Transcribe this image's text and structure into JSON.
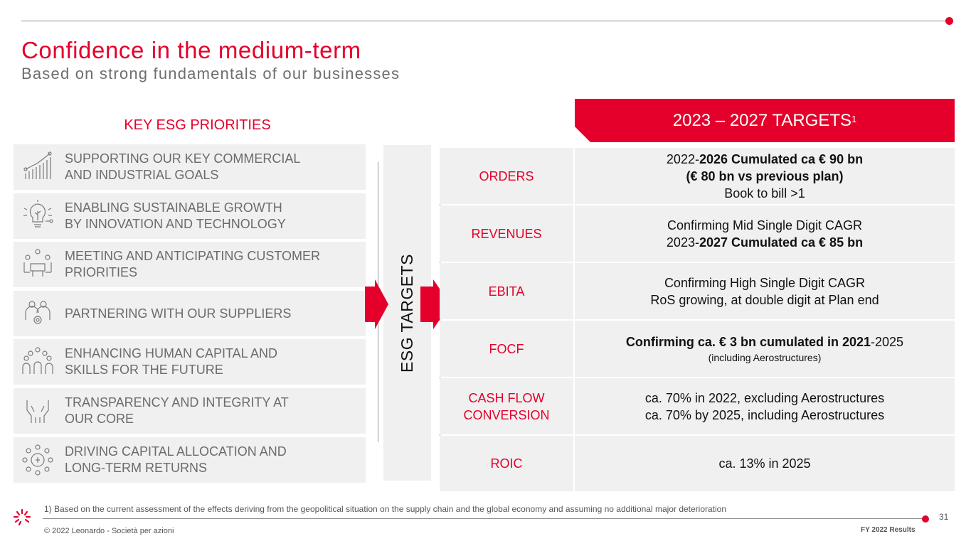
{
  "header": {
    "title": "Confidence in the medium-term",
    "subtitle": "Based on strong fundamentals of our businesses"
  },
  "esg": {
    "heading": "KEY ESG PRIORITIES",
    "vertical_label": "ESG TARGETS",
    "priorities": [
      {
        "line1": "SUPPORTING OUR KEY COMMERCIAL",
        "line2": "AND INDUSTRIAL GOALS",
        "icon": "growth-chart-icon"
      },
      {
        "line1": "ENABLING SUSTAINABLE GROWTH",
        "line2": "BY INNOVATION AND TECHNOLOGY",
        "icon": "lightbulb-icon"
      },
      {
        "line1": "MEETING AND ANTICIPATING CUSTOMER",
        "line2": "PRIORITIES",
        "icon": "meeting-icon"
      },
      {
        "line1": "PARTNERING WITH OUR SUPPLIERS",
        "line2": "",
        "icon": "partners-icon"
      },
      {
        "line1": "ENHANCING HUMAN CAPITAL AND",
        "line2": "SKILLS FOR THE FUTURE",
        "icon": "people-icon"
      },
      {
        "line1": "TRANSPARENCY AND INTEGRITY AT",
        "line2": "OUR CORE",
        "icon": "hands-icon"
      },
      {
        "line1": "DRIVING CAPITAL ALLOCATION AND",
        "line2": "LONG-TERM RETURNS",
        "icon": "coins-icon"
      }
    ]
  },
  "targets": {
    "header": "2023 – 2027 TARGETS",
    "header_sup": "1",
    "rows": [
      {
        "label_l1": "ORDERS",
        "label_l2": "",
        "v1_a": "2022-",
        "v1_b": "2026 Cumulated ca € 90 bn",
        "v2": "(€ 80 bn vs previous plan)",
        "v3": "Book to bill >1"
      },
      {
        "label_l1": "REVENUES",
        "label_l2": "",
        "v1": "Confirming Mid Single Digit CAGR",
        "v2_a": "2023-",
        "v2_b": "2027 Cumulated ca € 85 bn"
      },
      {
        "label_l1": "EBITA",
        "label_l2": "",
        "v1": "Confirming High Single Digit CAGR",
        "v2": "RoS growing, at double digit at Plan end"
      },
      {
        "label_l1": "FOCF",
        "label_l2": "",
        "v1_a": "Confirming ca. € 3 bn cumulated in 2021",
        "v1_b": "-2025",
        "v2": "(including Aerostructures)"
      },
      {
        "label_l1": "CASH FLOW",
        "label_l2": "CONVERSION",
        "v1": "ca. 70% in 2022, excluding Aerostructures",
        "v2": "ca. 70% by 2025, including Aerostructures"
      },
      {
        "label_l1": "ROIC",
        "label_l2": "",
        "v1": "ca. 13% in 2025"
      }
    ]
  },
  "footer": {
    "footnote": "1) Based on the current assessment of the effects deriving from the geopolitical situation on the supply chain and the global economy and assuming no additional major deterioration",
    "copyright": "© 2022 Leonardo - Società per azioni",
    "page_number": "31",
    "report": "FY 2022 Results"
  },
  "colors": {
    "accent": "#e4002b",
    "panel": "#f0f0f0",
    "text_gray": "#6b6b6b"
  }
}
